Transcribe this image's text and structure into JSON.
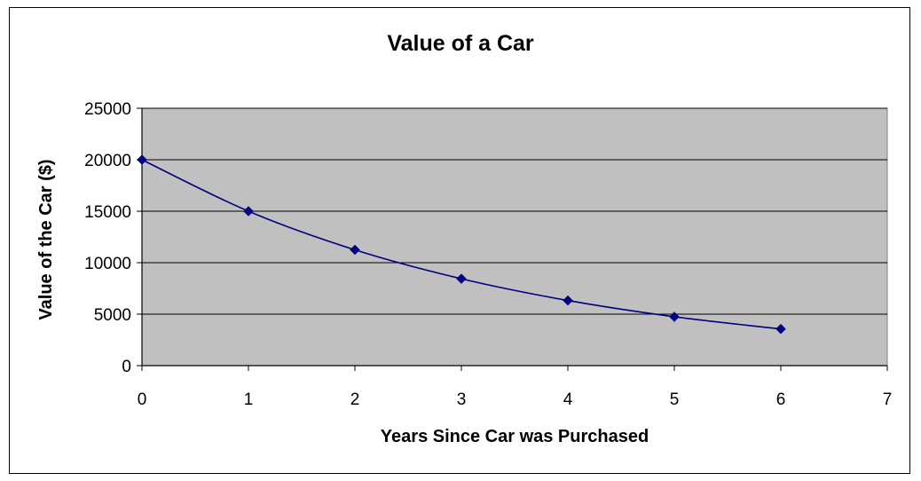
{
  "chart_data": {
    "type": "line",
    "title": "Value of a Car",
    "xlabel": "Years Since Car was Purchased",
    "ylabel": "Value of the Car ($)",
    "xlim": [
      0,
      7
    ],
    "ylim": [
      0,
      25000
    ],
    "x_ticks": [
      "0",
      "1",
      "2",
      "3",
      "4",
      "5",
      "6",
      "7"
    ],
    "y_ticks": [
      "0",
      "5000",
      "10000",
      "15000",
      "20000",
      "25000"
    ],
    "grid": "horizontal",
    "legend": "none",
    "line_style": "smoothed",
    "marker": "diamond",
    "series": [
      {
        "x": [
          0,
          1,
          2,
          3,
          4,
          5,
          6
        ],
        "values": [
          20000,
          15000,
          11250,
          8438,
          6328,
          4746,
          3560
        ]
      }
    ],
    "colors": {
      "plot_background": "#c0c0c0",
      "line": "#000080",
      "marker": "#000080",
      "gridline": "#000000",
      "axis": "#000000"
    }
  }
}
